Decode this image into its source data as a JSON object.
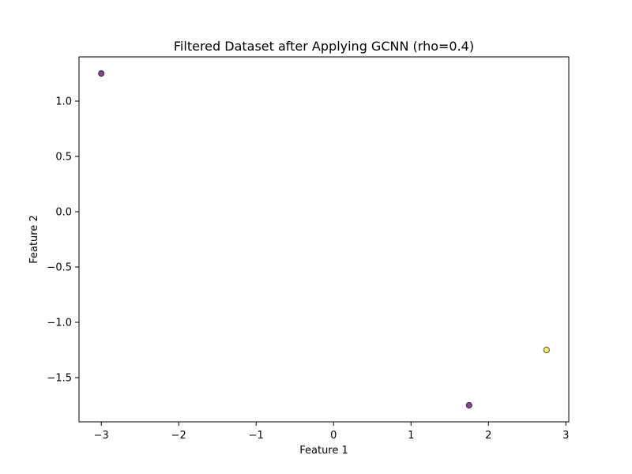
{
  "chart_data": {
    "type": "scatter",
    "title": "Filtered Dataset after Applying GCNN (rho=0.4)",
    "xlabel": "Feature 1",
    "ylabel": "Feature 2",
    "xlim": [
      -3.288,
      3.038
    ],
    "ylim": [
      -1.9,
      1.4
    ],
    "xticks": [
      -3,
      -2,
      -1,
      0,
      1,
      2,
      3
    ],
    "xtick_labels": [
      "−3",
      "−2",
      "−1",
      "0",
      "1",
      "2",
      "3"
    ],
    "yticks": [
      -1.5,
      -1.0,
      -0.5,
      0.0,
      0.5,
      1.0
    ],
    "ytick_labels": [
      "−1.5",
      "−1.0",
      "−0.5",
      "0.0",
      "0.5",
      "1.0"
    ],
    "grid": false,
    "legend": "none",
    "points": [
      {
        "x": -3.0,
        "y": 1.25,
        "color": "#440154"
      },
      {
        "x": 1.75,
        "y": -1.75,
        "color": "#440154"
      },
      {
        "x": 2.75,
        "y": -1.25,
        "color": "#fde725"
      }
    ],
    "point_alpha": 0.7,
    "edge_color": "#000000"
  }
}
